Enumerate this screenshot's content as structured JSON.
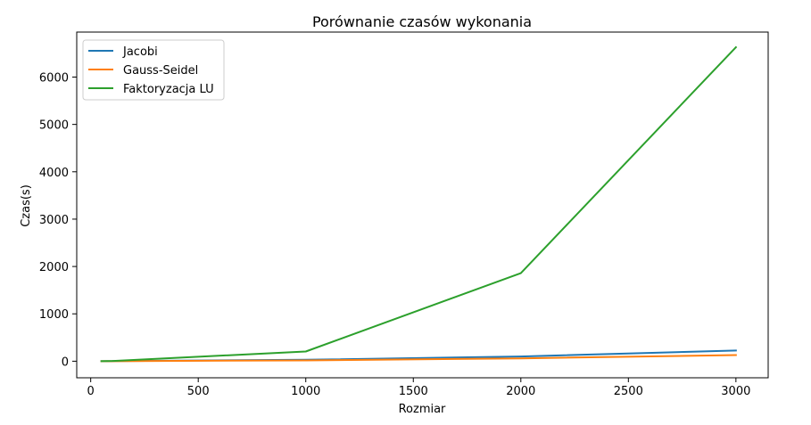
{
  "chart_data": {
    "type": "line",
    "title": "Porównanie czasów wykonania",
    "xlabel": "Rozmiar",
    "ylabel": "Czas(s)",
    "xlim": [
      -65,
      3150
    ],
    "ylim": [
      -350,
      6950
    ],
    "xticks": [
      0,
      500,
      1000,
      1500,
      2000,
      2500,
      3000
    ],
    "yticks": [
      0,
      1000,
      2000,
      3000,
      4000,
      5000,
      6000
    ],
    "grid": false,
    "legend_position": "top-left",
    "series": [
      {
        "name": "Jacobi",
        "color": "#1f77b4",
        "x": [
          50,
          100,
          1000,
          2000,
          3000
        ],
        "y": [
          0.5,
          1.5,
          30,
          100,
          225
        ]
      },
      {
        "name": "Gauss-Seidel",
        "color": "#ff7f0e",
        "x": [
          50,
          100,
          1000,
          2000,
          3000
        ],
        "y": [
          0.3,
          1,
          18,
          60,
          130
        ]
      },
      {
        "name": "Faktoryzacja LU",
        "color": "#2ca02c",
        "x": [
          50,
          100,
          1000,
          2000,
          3000
        ],
        "y": [
          0.5,
          5,
          205,
          1860,
          6630
        ]
      }
    ]
  }
}
